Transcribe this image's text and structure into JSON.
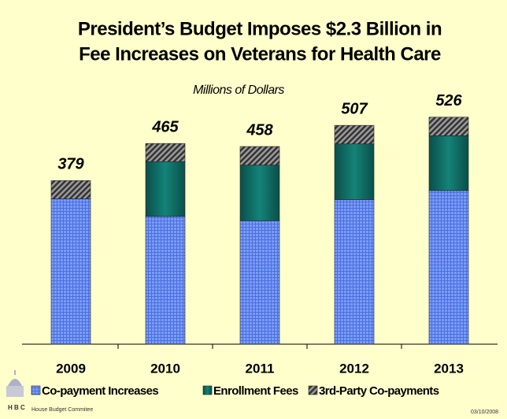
{
  "chart_data": {
    "type": "stacked-bar",
    "title": [
      "President’s Budget Imposes $2.3 Billion in",
      "Fee Increases on Veterans for Health Care"
    ],
    "subtitle": "Millions of Dollars",
    "categories": [
      "2009",
      "2010",
      "2011",
      "2012",
      "2013"
    ],
    "totals": [
      379,
      465,
      458,
      507,
      526
    ],
    "series": [
      {
        "name": "Co-payment Increases",
        "color": "#6a8cf2",
        "values": [
          337,
          296,
          286,
          335,
          356
        ]
      },
      {
        "name": "Enrollment Fees",
        "color": "#0d6b63",
        "values": [
          0,
          127,
          129,
          129,
          127
        ]
      },
      {
        "name": "3rd-Party Co-payments",
        "color": "#555555",
        "values": [
          42,
          42,
          43,
          43,
          43
        ]
      }
    ],
    "footer": {
      "committee": "House Budget Commitee",
      "logo": "H B C",
      "date": "03/10/2008"
    }
  }
}
